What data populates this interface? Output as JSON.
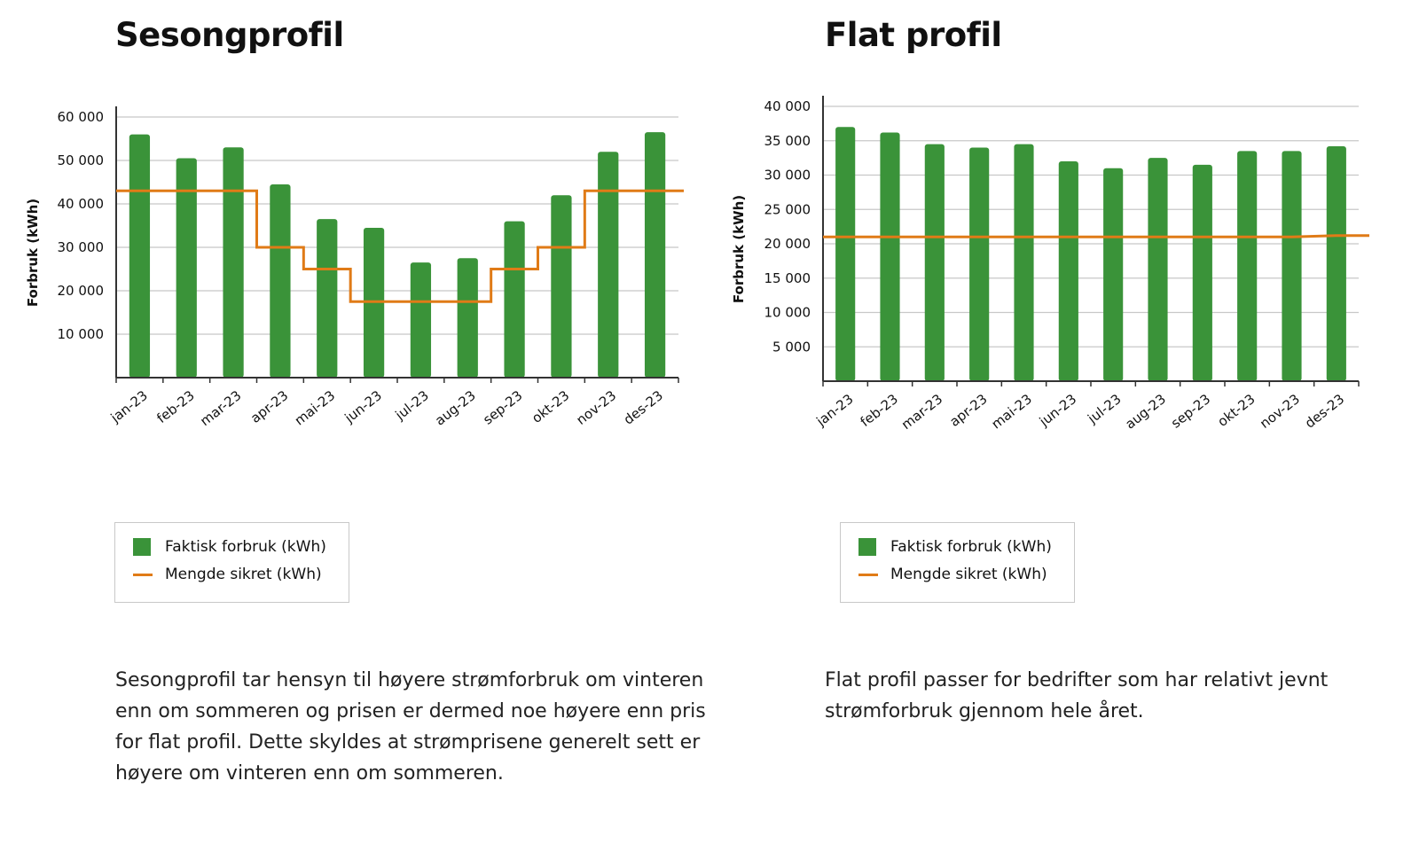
{
  "colors": {
    "bar": "#3a9339",
    "line": "#e07b17",
    "grid": "#c8c8c8",
    "axis": "#333333"
  },
  "legend": {
    "bar_label": "Faktisk forbruk (kWh)",
    "line_label": "Mengde sikret (kWh)"
  },
  "charts": [
    {
      "title": "Sesongprofil",
      "description": "Sesongprofil tar hensyn til høyere strømforbruk om vinteren enn om sommeren og prisen er dermed noe høyere enn pris for flat profil. Dette skyldes at strømprisene generelt sett er høyere om vinteren enn om sommeren.",
      "legend_bar": "Faktisk forbruk (kWh)",
      "legend_line": "Mengde sikret (kWh)"
    },
    {
      "title": "Flat profil",
      "description": "Flat profil passer for bedrifter som har relativt jevnt strømforbruk gjennom hele året.",
      "legend_bar": "Faktisk forbruk (kWh)",
      "legend_line": "Mengde sikret (kWh)"
    }
  ],
  "chart_data": [
    {
      "type": "bar",
      "title": "Sesongprofil",
      "xlabel": "",
      "ylabel": "Forbruk (kWh)",
      "ylim": [
        0,
        60000
      ],
      "yticks": [
        10000,
        20000,
        30000,
        40000,
        50000,
        60000
      ],
      "ytick_labels": [
        "10 000",
        "20 000",
        "30 000",
        "40 000",
        "50 000",
        "60 000"
      ],
      "categories": [
        "jan-23",
        "feb-23",
        "mar-23",
        "apr-23",
        "mai-23",
        "jun-23",
        "jul-23",
        "aug-23",
        "sep-23",
        "okt-23",
        "nov-23",
        "des-23"
      ],
      "series": [
        {
          "name": "Faktisk forbruk (kWh)",
          "type": "bar",
          "values": [
            56000,
            50500,
            53000,
            44500,
            36500,
            34500,
            26500,
            27500,
            36000,
            42000,
            52000,
            56500
          ]
        },
        {
          "name": "Mengde sikret (kWh)",
          "type": "step",
          "values": [
            43000,
            43000,
            43000,
            30000,
            25000,
            17500,
            17500,
            17500,
            25000,
            30000,
            43000,
            43000
          ]
        }
      ],
      "grid": true,
      "legend": "below"
    },
    {
      "type": "bar",
      "title": "Flat profil",
      "xlabel": "",
      "ylabel": "Forbruk (kWh)",
      "ylim": [
        0,
        40000
      ],
      "yticks": [
        5000,
        10000,
        15000,
        20000,
        25000,
        30000,
        35000,
        40000
      ],
      "ytick_labels": [
        "5 000",
        "10 000",
        "15 000",
        "20 000",
        "25 000",
        "30 000",
        "35 000",
        "40 000"
      ],
      "categories": [
        "jan-23",
        "feb-23",
        "mar-23",
        "apr-23",
        "mai-23",
        "jun-23",
        "jul-23",
        "aug-23",
        "sep-23",
        "okt-23",
        "nov-23",
        "des-23"
      ],
      "series": [
        {
          "name": "Faktisk forbruk (kWh)",
          "type": "bar",
          "values": [
            37000,
            36200,
            34500,
            34000,
            34500,
            32000,
            31000,
            32500,
            31500,
            33500,
            33500,
            34200
          ]
        },
        {
          "name": "Mengde sikret (kWh)",
          "type": "line",
          "values": [
            21000,
            21000,
            21000,
            21000,
            21000,
            21000,
            21000,
            21000,
            21000,
            21000,
            21000,
            21200
          ]
        }
      ],
      "grid": true,
      "legend": "below"
    }
  ]
}
